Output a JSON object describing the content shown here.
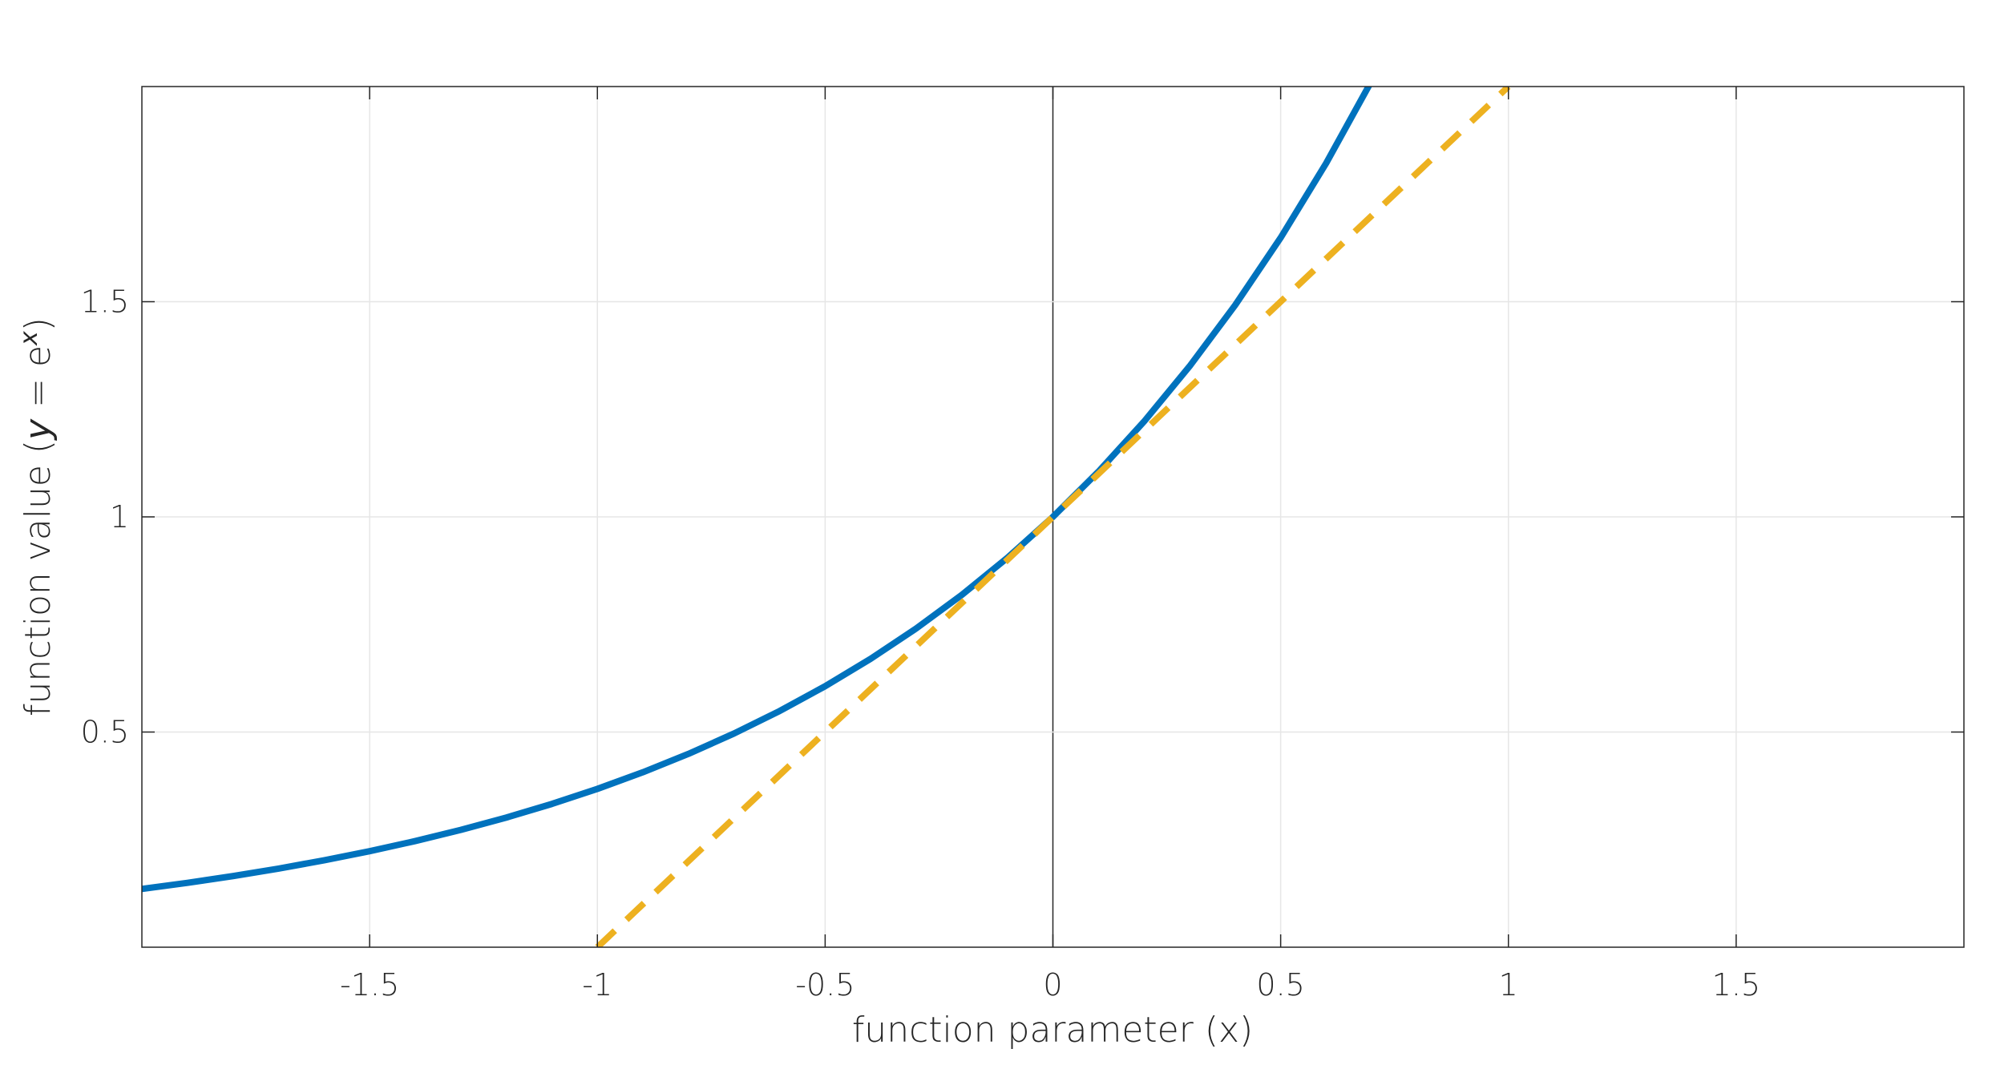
{
  "chart_data": {
    "type": "line",
    "xlabel": "function parameter (x)",
    "ylabel_parts": [
      "function value (",
      "y",
      " = e",
      "x",
      ")"
    ],
    "xlim": [
      -2,
      2
    ],
    "ylim": [
      0,
      2
    ],
    "xticks": [
      -1.5,
      -1,
      -0.5,
      0,
      0.5,
      1,
      1.5
    ],
    "yticks": [
      0.5,
      1,
      1.5
    ],
    "grid": true,
    "zero_line": true,
    "series": [
      {
        "color": "#0072bd",
        "dashed": false,
        "x": [
          -2,
          -1.9,
          -1.8,
          -1.7,
          -1.6,
          -1.5,
          -1.4,
          -1.3,
          -1.2,
          -1.1,
          -1,
          -0.9,
          -0.8,
          -0.7,
          -0.6,
          -0.5,
          -0.4,
          -0.3,
          -0.2,
          -0.1,
          0,
          0.1,
          0.2,
          0.3,
          0.4,
          0.5,
          0.6,
          0.7
        ],
        "values": [
          0.1353,
          0.1496,
          0.1653,
          0.1827,
          0.2019,
          0.2231,
          0.2466,
          0.2725,
          0.3012,
          0.3329,
          0.3679,
          0.4066,
          0.4493,
          0.4966,
          0.5488,
          0.6065,
          0.6703,
          0.7408,
          0.8187,
          0.9048,
          1,
          1.1052,
          1.2214,
          1.3499,
          1.4918,
          1.6487,
          1.8221,
          2.0138
        ]
      },
      {
        "color": "#edb120",
        "dashed": true,
        "x": [
          -1,
          1
        ],
        "values": [
          0,
          2
        ]
      }
    ]
  }
}
